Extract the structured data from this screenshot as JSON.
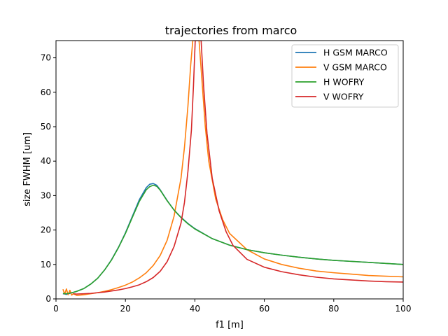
{
  "chart_data": {
    "type": "line",
    "title": "trajectories from marco",
    "xlabel": "f1 [m]",
    "ylabel": "size FWHM [um]",
    "xlim": [
      0,
      100
    ],
    "ylim": [
      0,
      75
    ],
    "xticks": [
      0,
      20,
      40,
      60,
      80,
      100
    ],
    "yticks": [
      0,
      10,
      20,
      30,
      40,
      50,
      60,
      70
    ],
    "grid": false,
    "legend_position": "top-right",
    "series": [
      {
        "name": "H GSM MARCO",
        "color": "#1f77b4",
        "points": [
          [
            2,
            1.5
          ],
          [
            3,
            1.3
          ],
          [
            4,
            1.6
          ],
          [
            5,
            1.9
          ],
          [
            6,
            2.2
          ],
          [
            8,
            3.0
          ],
          [
            10,
            4.3
          ],
          [
            12,
            6.0
          ],
          [
            14,
            8.4
          ],
          [
            16,
            11.4
          ],
          [
            18,
            15.0
          ],
          [
            20,
            19.2
          ],
          [
            22,
            24.0
          ],
          [
            24,
            28.8
          ],
          [
            26,
            32.3
          ],
          [
            27,
            33.3
          ],
          [
            28,
            33.5
          ],
          [
            29,
            33.0
          ],
          [
            30,
            31.7
          ],
          [
            32,
            28.6
          ],
          [
            34,
            25.8
          ],
          [
            36,
            23.7
          ],
          [
            38,
            21.9
          ],
          [
            40,
            20.4
          ],
          [
            45,
            17.5
          ],
          [
            50,
            15.6
          ],
          [
            55,
            14.3
          ],
          [
            60,
            13.4
          ],
          [
            65,
            12.7
          ],
          [
            70,
            12.1
          ],
          [
            75,
            11.6
          ],
          [
            80,
            11.2
          ],
          [
            85,
            10.9
          ],
          [
            90,
            10.6
          ],
          [
            95,
            10.3
          ],
          [
            100,
            10.0
          ]
        ]
      },
      {
        "name": "V GSM MARCO",
        "color": "#ff7f0e",
        "points": [
          [
            2,
            2.8
          ],
          [
            2.5,
            1.4
          ],
          [
            3,
            2.9
          ],
          [
            3.5,
            1.2
          ],
          [
            4,
            2.5
          ],
          [
            4.5,
            1.1
          ],
          [
            5,
            1.5
          ],
          [
            6,
            1.0
          ],
          [
            8,
            1.2
          ],
          [
            10,
            1.5
          ],
          [
            12,
            1.8
          ],
          [
            14,
            2.2
          ],
          [
            16,
            2.7
          ],
          [
            18,
            3.3
          ],
          [
            20,
            4.0
          ],
          [
            22,
            4.9
          ],
          [
            24,
            6.1
          ],
          [
            26,
            7.6
          ],
          [
            28,
            9.7
          ],
          [
            30,
            12.6
          ],
          [
            32,
            17.0
          ],
          [
            34,
            24.0
          ],
          [
            36,
            35.0
          ],
          [
            37,
            44.0
          ],
          [
            38,
            56.0
          ],
          [
            38.8,
            68.0
          ],
          [
            39.4,
            75.0
          ],
          [
            41.2,
            75.0
          ],
          [
            42,
            64.0
          ],
          [
            43,
            50.0
          ],
          [
            44,
            40.0
          ],
          [
            46,
            29.0
          ],
          [
            48,
            23.0
          ],
          [
            50,
            19.0
          ],
          [
            55,
            14.3
          ],
          [
            60,
            11.6
          ],
          [
            65,
            10.0
          ],
          [
            70,
            8.9
          ],
          [
            75,
            8.1
          ],
          [
            80,
            7.6
          ],
          [
            85,
            7.2
          ],
          [
            90,
            6.8
          ],
          [
            95,
            6.6
          ],
          [
            100,
            6.4
          ]
        ]
      },
      {
        "name": "H WOFRY",
        "color": "#2ca02c",
        "points": [
          [
            2,
            1.6
          ],
          [
            3,
            1.5
          ],
          [
            4,
            1.7
          ],
          [
            5,
            1.9
          ],
          [
            6,
            2.2
          ],
          [
            8,
            3.0
          ],
          [
            10,
            4.3
          ],
          [
            12,
            6.0
          ],
          [
            14,
            8.4
          ],
          [
            16,
            11.3
          ],
          [
            18,
            14.9
          ],
          [
            20,
            19.0
          ],
          [
            22,
            23.7
          ],
          [
            24,
            28.3
          ],
          [
            26,
            31.7
          ],
          [
            27,
            32.6
          ],
          [
            28,
            33.0
          ],
          [
            29,
            32.7
          ],
          [
            30,
            31.6
          ],
          [
            32,
            28.5
          ],
          [
            34,
            25.8
          ],
          [
            36,
            23.6
          ],
          [
            38,
            21.8
          ],
          [
            40,
            20.3
          ],
          [
            45,
            17.5
          ],
          [
            50,
            15.6
          ],
          [
            55,
            14.3
          ],
          [
            60,
            13.4
          ],
          [
            65,
            12.7
          ],
          [
            70,
            12.1
          ],
          [
            75,
            11.6
          ],
          [
            80,
            11.2
          ],
          [
            85,
            10.9
          ],
          [
            90,
            10.6
          ],
          [
            95,
            10.3
          ],
          [
            100,
            10.0
          ]
        ]
      },
      {
        "name": "V WOFRY",
        "color": "#d62728",
        "points": [
          [
            5,
            1.5
          ],
          [
            6,
            1.4
          ],
          [
            8,
            1.5
          ],
          [
            10,
            1.6
          ],
          [
            12,
            1.8
          ],
          [
            14,
            2.0
          ],
          [
            16,
            2.3
          ],
          [
            18,
            2.6
          ],
          [
            20,
            3.0
          ],
          [
            22,
            3.5
          ],
          [
            24,
            4.1
          ],
          [
            26,
            5.0
          ],
          [
            28,
            6.2
          ],
          [
            30,
            8.0
          ],
          [
            32,
            10.8
          ],
          [
            34,
            15.2
          ],
          [
            36,
            22.0
          ],
          [
            37,
            28.0
          ],
          [
            38,
            37.0
          ],
          [
            39,
            49.0
          ],
          [
            39.6,
            62.0
          ],
          [
            40.1,
            75.0
          ],
          [
            41.8,
            75.0
          ],
          [
            42.5,
            62.0
          ],
          [
            43.5,
            48.0
          ],
          [
            45,
            35.0
          ],
          [
            47,
            25.5
          ],
          [
            49,
            19.5
          ],
          [
            51,
            15.5
          ],
          [
            55,
            11.5
          ],
          [
            60,
            9.2
          ],
          [
            65,
            7.9
          ],
          [
            70,
            7.0
          ],
          [
            75,
            6.3
          ],
          [
            80,
            5.8
          ],
          [
            85,
            5.5
          ],
          [
            90,
            5.2
          ],
          [
            95,
            5.0
          ],
          [
            100,
            4.9
          ]
        ]
      }
    ]
  }
}
